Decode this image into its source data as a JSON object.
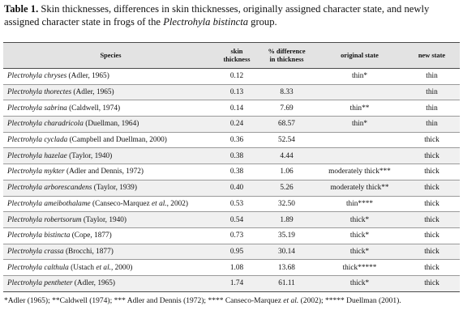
{
  "caption": {
    "lead": "Table 1.",
    "part1": " Skin thicknesses, differences in skin thicknesses, originally assigned character state, and newly assigned character state in frogs of the ",
    "group_name": "Plectrohyla bistincta",
    "part2": " group."
  },
  "headers": {
    "species": "Species",
    "skin_thickness_line1": "skin",
    "skin_thickness_line2": "thickness",
    "pct_diff_line1": "% difference",
    "pct_diff_line2": "in thickness",
    "original_state": "original state",
    "new_state": "new state"
  },
  "rows": [
    {
      "species": "Plectrohyla chryses",
      "author_pre": " (Adler, 1965)",
      "author_italic": "",
      "author_post": "",
      "skin": "0.12",
      "pct": "",
      "orig": "thin*",
      "new": "thin"
    },
    {
      "species": "Plectrohyla thorectes",
      "author_pre": " (Adler, 1965)",
      "author_italic": "",
      "author_post": "",
      "skin": "0.13",
      "pct": "8.33",
      "orig": "",
      "new": "thin"
    },
    {
      "species": "Plectrohyla sabrina",
      "author_pre": " (Caldwell, 1974)",
      "author_italic": "",
      "author_post": "",
      "skin": "0.14",
      "pct": "7.69",
      "orig": "thin**",
      "new": "thin"
    },
    {
      "species": "Plectrohyla charadricola",
      "author_pre": " (Duellman, 1964)",
      "author_italic": "",
      "author_post": "",
      "skin": "0.24",
      "pct": "68.57",
      "orig": "thin*",
      "new": "thin"
    },
    {
      "species": "Plectrohyla cyclada",
      "author_pre": " (Campbell and Duellman, 2000)",
      "author_italic": "",
      "author_post": "",
      "skin": "0.36",
      "pct": "52.54",
      "orig": "",
      "new": "thick"
    },
    {
      "species": "Plectrohyla hazelae",
      "author_pre": " (Taylor, 1940)",
      "author_italic": "",
      "author_post": "",
      "skin": "0.38",
      "pct": "4.44",
      "orig": "",
      "new": "thick"
    },
    {
      "species": "Plectrohyla mykter",
      "author_pre": " (Adler and Dennis, 1972)",
      "author_italic": "",
      "author_post": "",
      "skin": "0.38",
      "pct": "1.06",
      "orig": "moderately thick***",
      "new": "thick"
    },
    {
      "species": "Plectrohyla arborescandens",
      "author_pre": " (Taylor, 1939)",
      "author_italic": "",
      "author_post": "",
      "skin": "0.40",
      "pct": "5.26",
      "orig": "moderately thick**",
      "new": "thick"
    },
    {
      "species": "Plectrohyla ameibothalame",
      "author_pre": " (Canseco-Marquez ",
      "author_italic": "et al.",
      "author_post": ", 2002)",
      "skin": "0.53",
      "pct": "32.50",
      "orig": "thin****",
      "new": "thick"
    },
    {
      "species": "Plectrohyla robertsorum",
      "author_pre": " (Taylor, 1940)",
      "author_italic": "",
      "author_post": "",
      "skin": "0.54",
      "pct": "1.89",
      "orig": "thick*",
      "new": "thick"
    },
    {
      "species": "Plectrohyla bistincta",
      "author_pre": " (Cope, 1877)",
      "author_italic": "",
      "author_post": "",
      "skin": "0.73",
      "pct": "35.19",
      "orig": "thick*",
      "new": "thick"
    },
    {
      "species": "Plectrohyla crassa",
      "author_pre": " (Brocchi, 1877)",
      "author_italic": "",
      "author_post": "",
      "skin": "0.95",
      "pct": "30.14",
      "orig": "thick*",
      "new": "thick"
    },
    {
      "species": "Plectrohyla calthula",
      "author_pre": " (Ustach ",
      "author_italic": "et al.",
      "author_post": ", 2000)",
      "skin": "1.08",
      "pct": "13.68",
      "orig": "thick*****",
      "new": "thick"
    },
    {
      "species": "Plectrohyla pentheter",
      "author_pre": " (Adler, 1965)",
      "author_italic": "",
      "author_post": "",
      "skin": "1.74",
      "pct": "61.11",
      "orig": "thick*",
      "new": "thick"
    }
  ],
  "footnote": {
    "part1": "*Adler (1965); **Caldwell (1974); *** Adler and Dennis (1972); **** Canseco-Marquez ",
    "italic": "et al.",
    "part2": " (2002); ***** Duellman (2001)."
  }
}
